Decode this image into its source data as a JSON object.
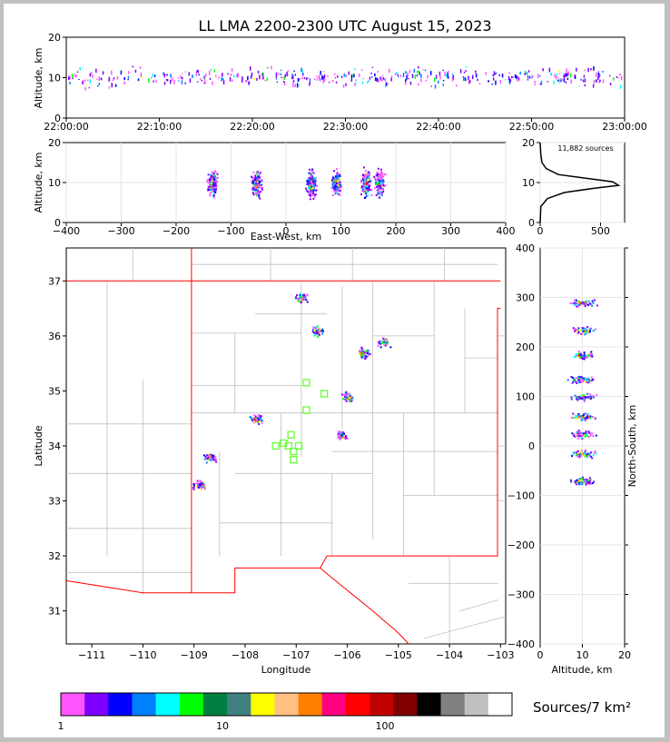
{
  "title": "LL LMA 2200-2300 UTC August 15, 2023",
  "colors": {
    "frame": "#c0c0c0",
    "border": "#ff0000",
    "county": "#bfbfbf",
    "stations": "#66ff33"
  },
  "chart_data": [
    {
      "type": "scatter",
      "panel": "time-height",
      "ylabel": "Altitude, km",
      "ylim": [
        0,
        20
      ],
      "yticks": [
        "0",
        "10",
        "20"
      ],
      "xticks": [
        "22:00:00",
        "22:10:00",
        "22:20:00",
        "22:30:00",
        "22:40:00",
        "22:50:00",
        "23:00:00"
      ]
    },
    {
      "type": "heatmap",
      "panel": "east-west-altitude",
      "xlabel": "East-West, km",
      "ylabel": "Altitude, km",
      "xlim": [
        -400,
        400
      ],
      "ylim": [
        0,
        20
      ],
      "xticks": [
        "−400",
        "−300",
        "−200",
        "−100",
        "0",
        "100",
        "200",
        "300",
        "400"
      ],
      "yticks": [
        "0",
        "10",
        "20"
      ],
      "clusters_x_km": [
        -135,
        -55,
        45,
        90,
        145,
        170
      ]
    },
    {
      "type": "line",
      "panel": "altitude-histogram",
      "annotation": "11,882 sources",
      "xlim": [
        0,
        700
      ],
      "ylim": [
        0,
        20
      ],
      "xticks": [
        "0",
        "500"
      ],
      "yticks": [
        "0",
        "10",
        "20"
      ],
      "profile": [
        [
          0,
          0
        ],
        [
          5,
          4
        ],
        [
          60,
          6
        ],
        [
          200,
          7.5
        ],
        [
          450,
          8.6
        ],
        [
          650,
          9.3
        ],
        [
          600,
          10.2
        ],
        [
          400,
          11
        ],
        [
          150,
          12
        ],
        [
          50,
          13.5
        ],
        [
          15,
          15
        ],
        [
          5,
          17
        ],
        [
          0,
          20
        ]
      ]
    },
    {
      "type": "scatter",
      "panel": "plan-view",
      "xlabel": "Longitude",
      "ylabel": "Latitude",
      "xlim": [
        -111.5,
        -102.9
      ],
      "ylim": [
        30.4,
        37.6
      ],
      "xticks": [
        "−111",
        "−110",
        "−109",
        "−108",
        "−107",
        "−106",
        "−105",
        "−104",
        "−103"
      ],
      "yticks": [
        "31",
        "32",
        "33",
        "34",
        "35",
        "36",
        "37"
      ],
      "stations": [
        [
          -106.8,
          35.15
        ],
        [
          -106.45,
          34.95
        ],
        [
          -106.8,
          34.65
        ],
        [
          -107.1,
          34.2
        ],
        [
          -107.25,
          34.05
        ],
        [
          -107.4,
          34.0
        ],
        [
          -107.15,
          34.0
        ],
        [
          -106.95,
          34.0
        ],
        [
          -107.05,
          33.9
        ],
        [
          -107.05,
          33.75
        ]
      ],
      "clusters": [
        [
          -106.9,
          36.7
        ],
        [
          -106.6,
          36.1
        ],
        [
          -105.7,
          35.7
        ],
        [
          -106.0,
          34.9
        ],
        [
          -107.8,
          34.5
        ],
        [
          -108.7,
          33.8
        ],
        [
          -108.9,
          33.3
        ],
        [
          -105.3,
          35.9
        ],
        [
          -106.1,
          34.2
        ]
      ]
    },
    {
      "type": "heatmap",
      "panel": "altitude-north-south",
      "xlabel": "Altitude, km",
      "ylabel": "North-South, km",
      "xlim": [
        0,
        20
      ],
      "ylim": [
        -400,
        400
      ],
      "xticks": [
        "0",
        "10",
        "20"
      ],
      "yticks": [
        "400",
        "300",
        "200",
        "100",
        "0",
        "−100",
        "−200",
        "−300",
        "−400"
      ],
      "bands_km": [
        290,
        235,
        185,
        135,
        100,
        60,
        25,
        -15,
        -70
      ]
    }
  ],
  "colorbar": {
    "label": "Sources/7 km²",
    "ticks": [
      "1",
      "10",
      "100"
    ],
    "colors": [
      "#ff55ff",
      "#8000ff",
      "#0000ff",
      "#0080ff",
      "#00ffff",
      "#00ff00",
      "#008040",
      "#408080",
      "#ffff00",
      "#ffc080",
      "#ff8000",
      "#ff0080",
      "#ff0000",
      "#c00000",
      "#800000",
      "#000000",
      "#808080",
      "#c0c0c0",
      "#ffffff"
    ]
  }
}
